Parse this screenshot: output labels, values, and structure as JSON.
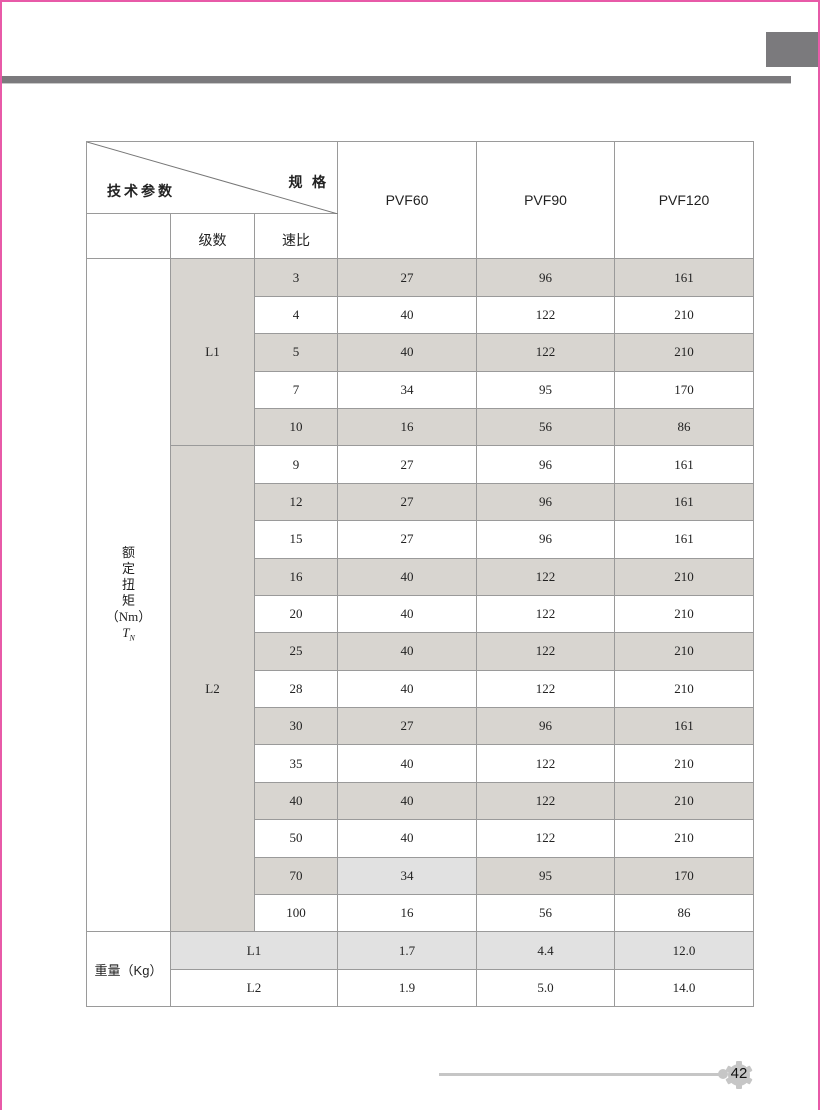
{
  "header": {
    "corner_left": "技术参数",
    "corner_right": "规 格",
    "stage_label": "级数",
    "ratio_label": "速比",
    "models": [
      "PVF60",
      "PVF90",
      "PVF120"
    ]
  },
  "torque": {
    "label_lines": [
      "额",
      "定",
      "扭",
      "矩",
      "（Nm）"
    ],
    "symbol": "T",
    "symbol_sub": "N",
    "groups": [
      {
        "stage": "L1",
        "rows": [
          {
            "ratio": "3",
            "values": [
              "27",
              "96",
              "161"
            ],
            "shaded": true
          },
          {
            "ratio": "4",
            "values": [
              "40",
              "122",
              "210"
            ],
            "shaded": false
          },
          {
            "ratio": "5",
            "values": [
              "40",
              "122",
              "210"
            ],
            "shaded": true
          },
          {
            "ratio": "7",
            "values": [
              "34",
              "95",
              "170"
            ],
            "shaded": false
          },
          {
            "ratio": "10",
            "values": [
              "16",
              "56",
              "86"
            ],
            "shaded": true
          }
        ]
      },
      {
        "stage": "L2",
        "rows": [
          {
            "ratio": "9",
            "values": [
              "27",
              "96",
              "161"
            ],
            "shaded": false
          },
          {
            "ratio": "12",
            "values": [
              "27",
              "96",
              "161"
            ],
            "shaded": true
          },
          {
            "ratio": "15",
            "values": [
              "27",
              "96",
              "161"
            ],
            "shaded": false
          },
          {
            "ratio": "16",
            "values": [
              "40",
              "122",
              "210"
            ],
            "shaded": true
          },
          {
            "ratio": "20",
            "values": [
              "40",
              "122",
              "210"
            ],
            "shaded": false
          },
          {
            "ratio": "25",
            "values": [
              "40",
              "122",
              "210"
            ],
            "shaded": true
          },
          {
            "ratio": "28",
            "values": [
              "40",
              "122",
              "210"
            ],
            "shaded": false
          },
          {
            "ratio": "30",
            "values": [
              "27",
              "96",
              "161"
            ],
            "shaded": true
          },
          {
            "ratio": "35",
            "values": [
              "40",
              "122",
              "210"
            ],
            "shaded": false
          },
          {
            "ratio": "40",
            "values": [
              "40",
              "122",
              "210"
            ],
            "shaded": true
          },
          {
            "ratio": "50",
            "values": [
              "40",
              "122",
              "210"
            ],
            "shaded": false
          },
          {
            "ratio": "70",
            "values": [
              "34",
              "95",
              "170"
            ],
            "shaded": true,
            "light_cells": [
              0
            ]
          },
          {
            "ratio": "100",
            "values": [
              "16",
              "56",
              "86"
            ],
            "shaded": false
          }
        ]
      }
    ]
  },
  "weight": {
    "label": "重量（Kg）",
    "rows": [
      {
        "stage": "L1",
        "values": [
          "1.7",
          "4.4",
          "12.0"
        ],
        "light": true
      },
      {
        "stage": "L2",
        "values": [
          "1.9",
          "5.0",
          "14.0"
        ],
        "light": false
      }
    ]
  },
  "page_number": "42",
  "colors": {
    "shade": "#d8d5d0",
    "light": "#e1e1e1",
    "bar": "#7b7a7d",
    "border": "#e85aa8"
  }
}
